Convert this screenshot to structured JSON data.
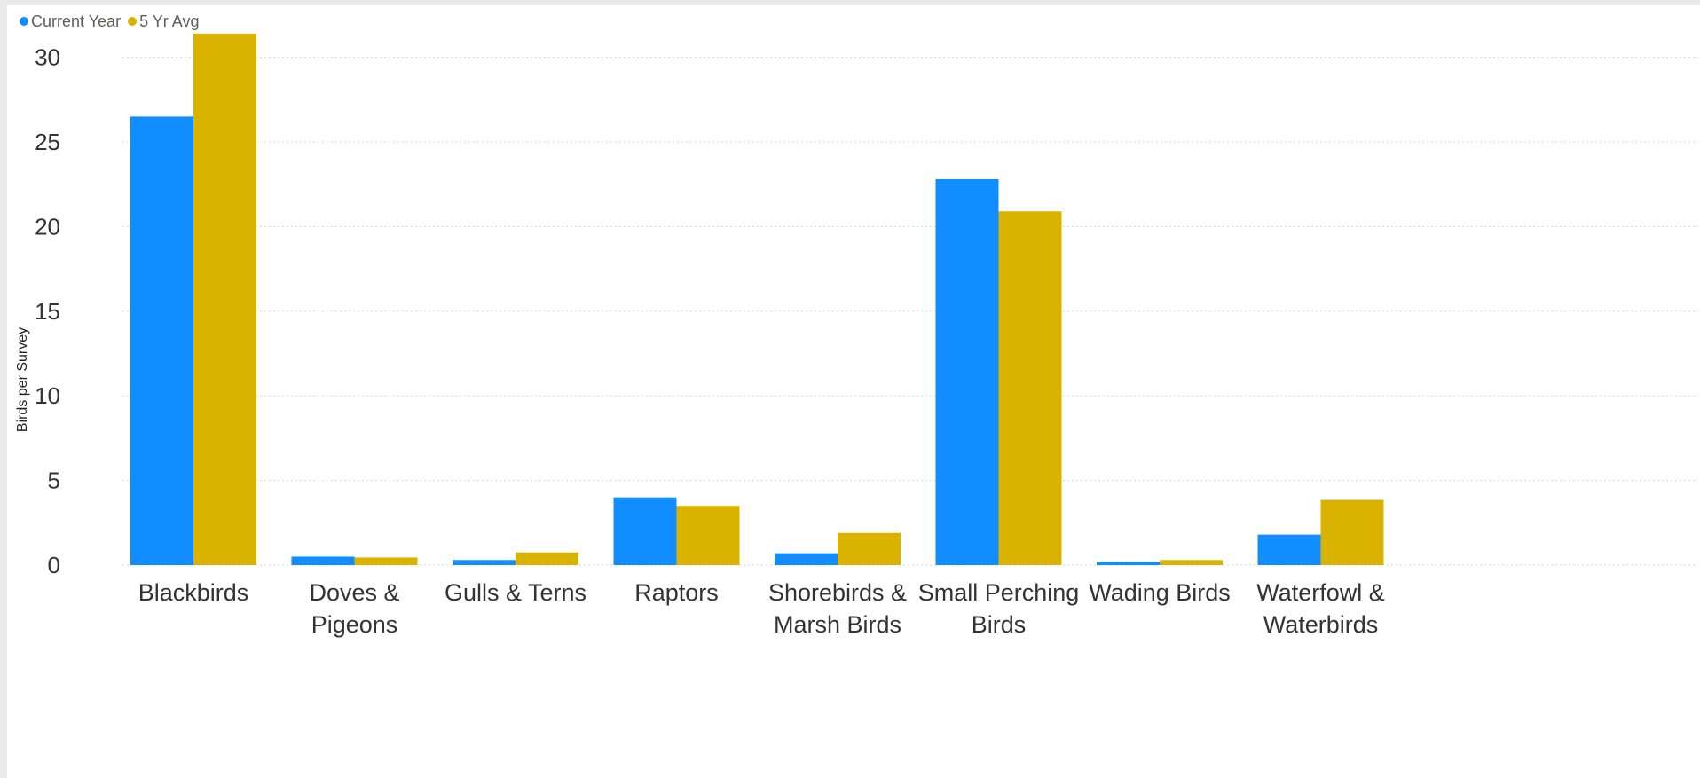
{
  "chart_data": {
    "type": "bar",
    "title": "",
    "xlabel": "",
    "ylabel": "Birds per Survey",
    "ylim": [
      0,
      32
    ],
    "yticks": [
      0,
      5,
      10,
      15,
      20,
      25,
      30
    ],
    "grid": true,
    "legend_position": "top-left",
    "categories": [
      "Blackbirds",
      "Doves & Pigeons",
      "Gulls & Terns",
      "Raptors",
      "Shorebirds & Marsh Birds",
      "Small Perching Birds",
      "Wading Birds",
      "Waterfowl & Waterbirds"
    ],
    "category_label_lines": [
      [
        "Blackbirds"
      ],
      [
        "Doves &",
        "Pigeons"
      ],
      [
        "Gulls & Terns"
      ],
      [
        "Raptors"
      ],
      [
        "Shorebirds &",
        "Marsh Birds"
      ],
      [
        "Small Perching",
        "Birds"
      ],
      [
        "Wading Birds"
      ],
      [
        "Waterfowl &",
        "Waterbirds"
      ]
    ],
    "series": [
      {
        "name": "Current Year",
        "color": "#118dff",
        "values": [
          26.5,
          0.5,
          0.3,
          4.0,
          0.7,
          22.8,
          0.2,
          1.8
        ]
      },
      {
        "name": "5 Yr Avg",
        "color": "#d9b300",
        "values": [
          31.4,
          0.45,
          0.75,
          3.5,
          1.9,
          20.9,
          0.3,
          3.85
        ]
      }
    ]
  }
}
